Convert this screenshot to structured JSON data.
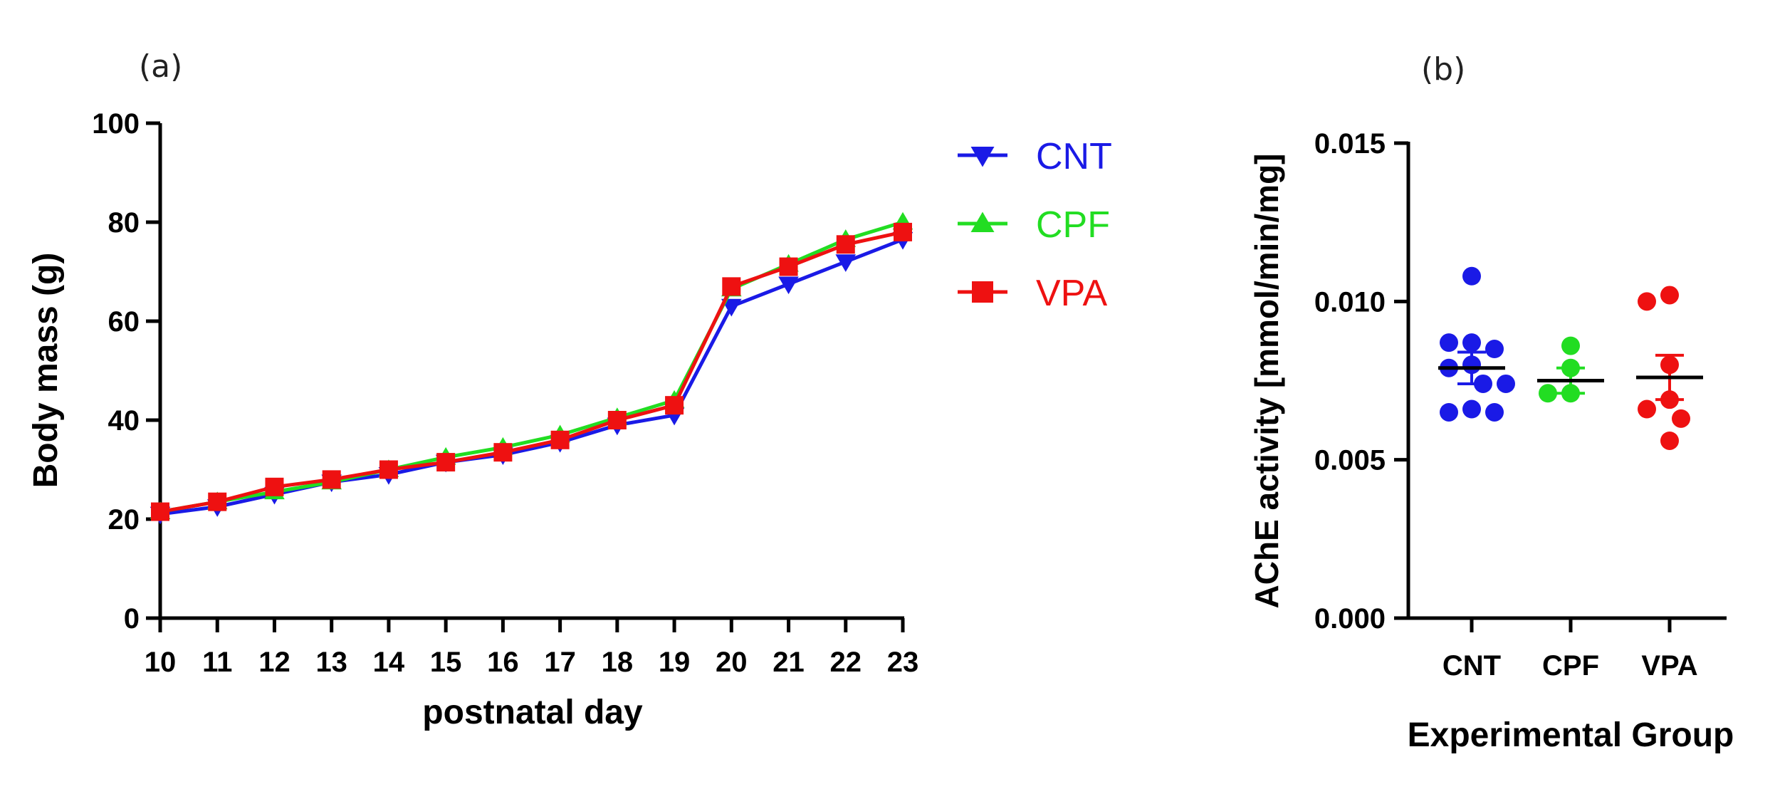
{
  "chart_data": [
    {
      "panel": "(a)",
      "type": "line",
      "title": "",
      "xlabel": "postnatal day",
      "ylabel": "Body mass (g)",
      "xlim": [
        10,
        23
      ],
      "ylim": [
        0,
        100
      ],
      "yticks": [
        0,
        20,
        40,
        60,
        80,
        100
      ],
      "x": [
        10,
        11,
        12,
        13,
        14,
        15,
        16,
        17,
        18,
        19,
        20,
        21,
        22,
        23
      ],
      "series": [
        {
          "name": "CNT",
          "color": "#1a1ae6",
          "marker": "triangle-down",
          "values": [
            21,
            22.5,
            25,
            27.5,
            29,
            31.5,
            33,
            35.5,
            39,
            41,
            63,
            67.5,
            72,
            76.5
          ]
        },
        {
          "name": "CPF",
          "color": "#22dd22",
          "marker": "triangle-up",
          "values": [
            21.5,
            23.5,
            25.5,
            27.5,
            30,
            32.5,
            34.5,
            37,
            40.5,
            44,
            66.5,
            71.5,
            76.5,
            80
          ]
        },
        {
          "name": "VPA",
          "color": "#ee1111",
          "marker": "square",
          "values": [
            21.5,
            23.5,
            26.5,
            28,
            30,
            31.5,
            33.5,
            36,
            40,
            43,
            67,
            71,
            75.5,
            78
          ]
        }
      ],
      "legend": "right"
    },
    {
      "panel": "(b)",
      "type": "scatter",
      "title": "",
      "xlabel": "Experimental Group",
      "ylabel": "AChE activity [mmol/min/mg]",
      "ylim": [
        0,
        0.015
      ],
      "yticks": [
        "0.000",
        "0.005",
        "0.010",
        "0.015"
      ],
      "categories": [
        "CNT",
        "CPF",
        "VPA"
      ],
      "groups": [
        {
          "name": "CNT",
          "color": "#1a1ae6",
          "mean": 0.0079,
          "sem_low": 0.0074,
          "sem_high": 0.0084,
          "points": [
            0.0108,
            0.0087,
            0.0087,
            0.0085,
            0.008,
            0.0079,
            0.0074,
            0.0074,
            0.0065,
            0.0065,
            0.0066
          ]
        },
        {
          "name": "CPF",
          "color": "#22dd22",
          "mean": 0.0075,
          "sem_low": 0.0071,
          "sem_high": 0.0079,
          "points": [
            0.0086,
            0.0079,
            0.0071,
            0.0071
          ]
        },
        {
          "name": "VPA",
          "color": "#ee1111",
          "mean": 0.0076,
          "sem_low": 0.0069,
          "sem_high": 0.0083,
          "points": [
            0.0102,
            0.01,
            0.008,
            0.0069,
            0.0066,
            0.0063,
            0.0056
          ]
        }
      ]
    }
  ]
}
